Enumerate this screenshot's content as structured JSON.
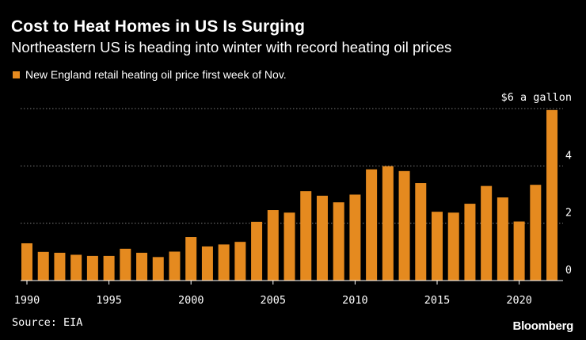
{
  "header": {
    "title": "Cost to Heat Homes in US Is Surging",
    "subtitle": "Northeastern US is heading into winter with record heating oil prices"
  },
  "footer": {
    "source": "Source: EIA",
    "brand": "Bloomberg"
  },
  "colors": {
    "background": "#000000",
    "bar": "#e58a1f",
    "grid": "#7a7a7a",
    "text": "#ffffff"
  },
  "chart_data": {
    "type": "bar",
    "title": "Cost to Heat Homes in US Is Surging",
    "legend": [
      "New England retail heating oil price first week of Nov."
    ],
    "y_unit_label": "$6 a gallon",
    "ylim": [
      0,
      6
    ],
    "yticks": [
      0,
      2,
      4
    ],
    "xticks": [
      1990,
      1995,
      2000,
      2005,
      2010,
      2015,
      2020
    ],
    "x": [
      1990,
      1991,
      1992,
      1993,
      1994,
      1995,
      1996,
      1997,
      1998,
      1999,
      2000,
      2001,
      2002,
      2003,
      2004,
      2005,
      2006,
      2007,
      2008,
      2009,
      2010,
      2011,
      2012,
      2013,
      2014,
      2015,
      2016,
      2017,
      2018,
      2019,
      2020,
      2021,
      2022
    ],
    "values": [
      1.3,
      1.0,
      0.97,
      0.9,
      0.86,
      0.86,
      1.11,
      0.97,
      0.82,
      1.01,
      1.52,
      1.19,
      1.26,
      1.35,
      2.05,
      2.46,
      2.37,
      3.12,
      2.96,
      2.73,
      3.0,
      3.88,
      3.99,
      3.82,
      3.4,
      2.4,
      2.37,
      2.68,
      3.3,
      2.9,
      2.06,
      3.34,
      5.95
    ]
  }
}
